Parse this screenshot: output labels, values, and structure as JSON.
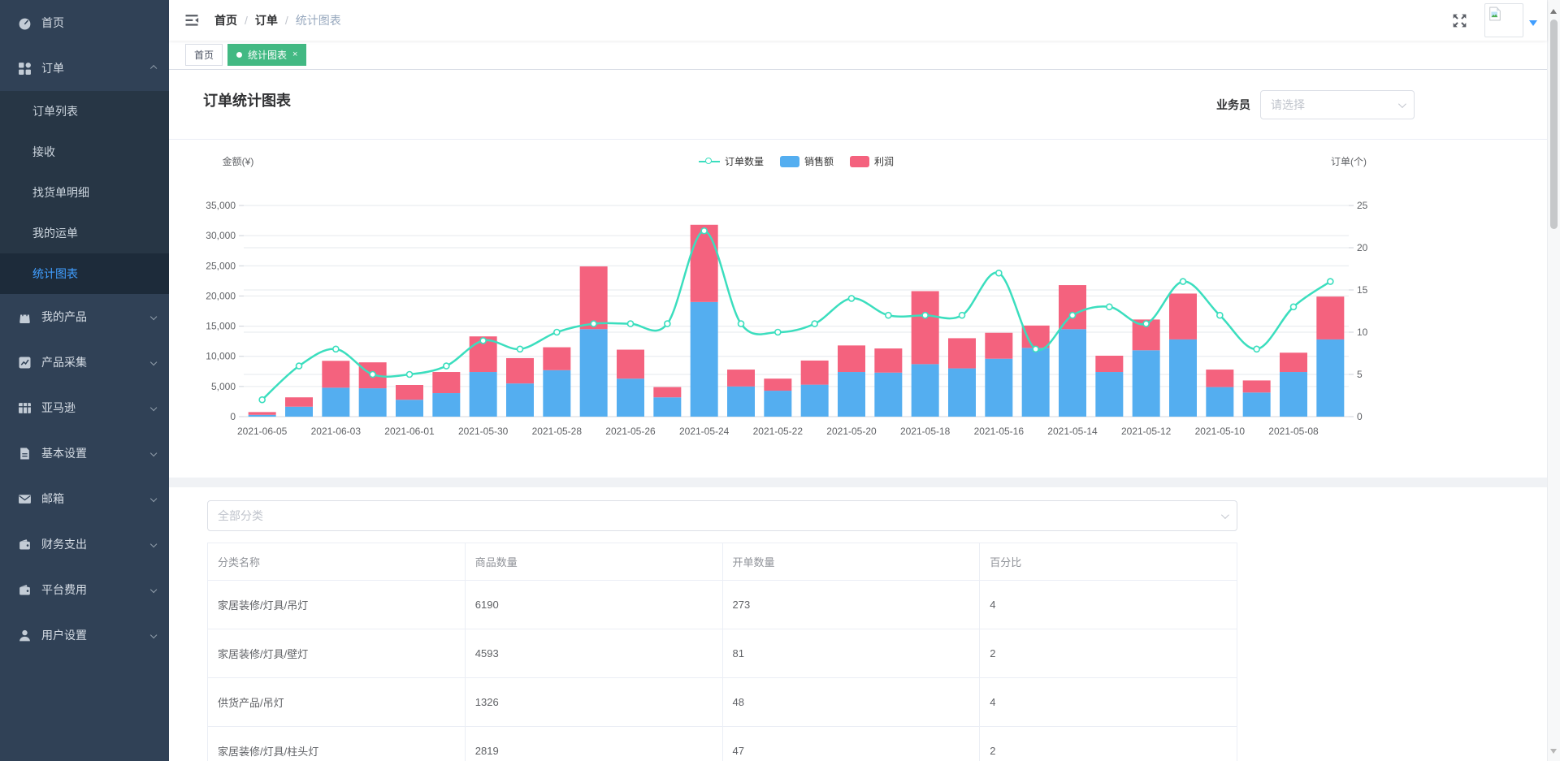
{
  "sidebar": {
    "items": [
      {
        "label": "首页",
        "icon": "dashboard"
      },
      {
        "label": "订单",
        "icon": "orders",
        "expanded": true,
        "children": [
          {
            "label": "订单列表"
          },
          {
            "label": "接收"
          },
          {
            "label": "找货单明细"
          },
          {
            "label": "我的运单"
          },
          {
            "label": "统计图表",
            "active": true
          }
        ]
      },
      {
        "label": "我的产品",
        "icon": "bag",
        "expandable": true
      },
      {
        "label": "产品采集",
        "icon": "collect",
        "expandable": true
      },
      {
        "label": "亚马逊",
        "icon": "grid-table",
        "expandable": true
      },
      {
        "label": "基本设置",
        "icon": "document",
        "expandable": true
      },
      {
        "label": "邮箱",
        "icon": "mail",
        "expandable": true
      },
      {
        "label": "财务支出",
        "icon": "wallet",
        "expandable": true
      },
      {
        "label": "平台费用",
        "icon": "wallet",
        "expandable": true
      },
      {
        "label": "用户设置",
        "icon": "user",
        "expandable": true
      }
    ]
  },
  "breadcrumb": {
    "items": [
      "首页",
      "订单",
      "统计图表"
    ]
  },
  "tabs": {
    "items": [
      {
        "label": "首页",
        "active": false,
        "closable": false
      },
      {
        "label": "统计图表",
        "active": true,
        "closable": true
      }
    ]
  },
  "page": {
    "title": "订单统计图表"
  },
  "filters": {
    "salesperson_label": "业务员",
    "salesperson_placeholder": "请选择",
    "category_placeholder": "全部分类"
  },
  "chart_data": {
    "type": "bar",
    "subtype": "stacked-bars-with-line-overlay",
    "legend": [
      "订单数量",
      "销售额",
      "利润"
    ],
    "legend_position": "top-center",
    "grid": true,
    "x_label_interval": 2,
    "categories": [
      "2021-06-05",
      "2021-06-04",
      "2021-06-03",
      "2021-06-02",
      "2021-06-01",
      "2021-05-31",
      "2021-05-30",
      "2021-05-29",
      "2021-05-28",
      "2021-05-27",
      "2021-05-26",
      "2021-05-25",
      "2021-05-24",
      "2021-05-23",
      "2021-05-22",
      "2021-05-21",
      "2021-05-20",
      "2021-05-19",
      "2021-05-18",
      "2021-05-17",
      "2021-05-16",
      "2021-05-15",
      "2021-05-14",
      "2021-05-13",
      "2021-05-12",
      "2021-05-11",
      "2021-05-10",
      "2021-05-09",
      "2021-05-08",
      "2021-05-07"
    ],
    "series": [
      {
        "name": "销售额",
        "type": "bar",
        "stack": "total",
        "color": "#54AEF0",
        "values": [
          300,
          1650,
          4800,
          4700,
          2800,
          3900,
          7400,
          5500,
          7700,
          14500,
          6300,
          3200,
          19000,
          5000,
          4300,
          5300,
          7400,
          7300,
          8700,
          8000,
          9600,
          11400,
          14500,
          7400,
          11000,
          12800,
          4900,
          4000,
          7400,
          12800
        ]
      },
      {
        "name": "利润",
        "type": "bar",
        "stack": "total",
        "color": "#F4627E",
        "values": [
          460,
          1550,
          4450,
          4300,
          2450,
          3500,
          5900,
          4200,
          3800,
          10400,
          4800,
          1700,
          12800,
          2800,
          2000,
          4000,
          4400,
          4000,
          12100,
          5000,
          4300,
          3700,
          7300,
          2700,
          5100,
          7600,
          2900,
          2000,
          3200,
          7100
        ]
      },
      {
        "name": "订单数量",
        "type": "line",
        "axis": "right",
        "color": "#3BDEBE",
        "values": [
          2,
          6,
          8,
          5,
          5,
          6,
          9,
          8,
          10,
          11,
          11,
          11,
          22,
          11,
          10,
          11,
          14,
          12,
          12,
          12,
          17,
          8,
          12,
          13,
          11,
          16,
          12,
          8,
          13,
          16
        ]
      }
    ],
    "left_axis": {
      "name": "金额(¥)",
      "min": 0,
      "max": 35000,
      "tick_labels": [
        "35,000",
        "30,000",
        "25,000",
        "20,000",
        "15,000",
        "10,000",
        "5,000",
        "0"
      ]
    },
    "right_axis": {
      "name": "订单(个)",
      "min": 0,
      "max": 25,
      "tick_labels": [
        "25",
        "20",
        "15",
        "10",
        "5",
        "0"
      ]
    }
  },
  "category_table": {
    "headers": [
      "分类名称",
      "商品数量",
      "开单数量",
      "百分比"
    ],
    "rows": [
      [
        "家居装修/灯具/吊灯",
        "6190",
        "273",
        "4"
      ],
      [
        "家居装修/灯具/壁灯",
        "4593",
        "81",
        "2"
      ],
      [
        "供货产品/吊灯",
        "1326",
        "48",
        "4"
      ],
      [
        "家居装修/灯具/柱头灯",
        "2819",
        "47",
        "2"
      ]
    ]
  },
  "colors": {
    "sidebar_bg": "#304156",
    "submenu_bg": "#273645",
    "active_item_bg": "#1d2b3a",
    "active_blue": "#409EFF",
    "tab_green": "#42b983",
    "bar_sales": "#54AEF0",
    "bar_profit": "#F4627E",
    "line_orders": "#3BDEBE"
  }
}
